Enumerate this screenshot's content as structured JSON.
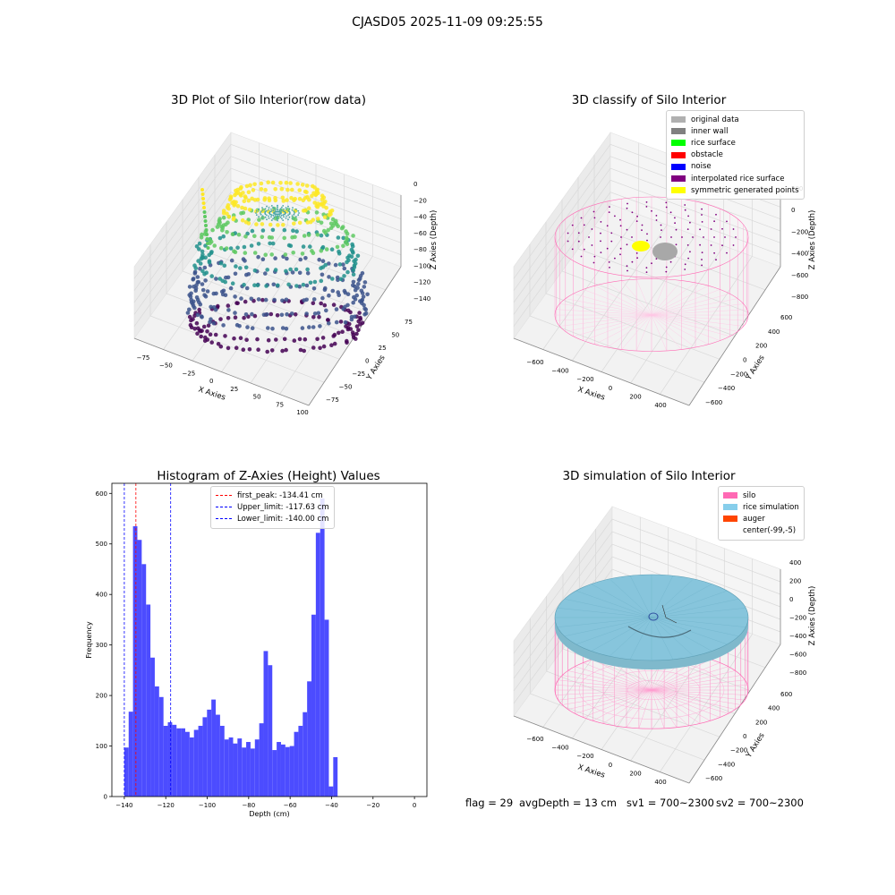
{
  "page": {
    "title": "CJASD05 2025-11-09 09:25:55"
  },
  "chart_data": [
    {
      "type": "scatter3d",
      "title": "3D Plot of Silo Interior(row data)",
      "xlabel": "X Axies",
      "ylabel": "Y Axies",
      "zlabel": "Z Axies (Depth)",
      "x_ticks": [
        "−75",
        "−50",
        "−25",
        "0",
        "25",
        "50",
        "75",
        "100"
      ],
      "y_ticks": [
        "−75",
        "−50",
        "−25",
        "0",
        "25",
        "50",
        "75"
      ],
      "z_ticks": [
        "0",
        "−20",
        "−40",
        "−60",
        "−80",
        "−100",
        "−120",
        "−140"
      ],
      "colormap": [
        "#440154",
        "#3b528b",
        "#21918c",
        "#5ec962",
        "#fde725"
      ]
    },
    {
      "type": "scatter3d",
      "title": "3D classify of Silo Interior",
      "xlabel": "X Axies",
      "ylabel": "Y Axies",
      "zlabel": "Z Axies (Depth)",
      "x_ticks": [
        "−600",
        "−400",
        "−200",
        "0",
        "200",
        "400"
      ],
      "y_ticks": [
        "−600",
        "−400",
        "−200",
        "0",
        "200",
        "400",
        "600"
      ],
      "z_ticks": [
        "200",
        "0",
        "−200",
        "−400",
        "−600",
        "−800"
      ],
      "legend_position": "top-right",
      "legend": [
        {
          "label": "original data",
          "color": "#b0b0b0"
        },
        {
          "label": "inner wall",
          "color": "#808080"
        },
        {
          "label": "rice surface",
          "color": "#00ff00"
        },
        {
          "label": "obstacle",
          "color": "#ff0000"
        },
        {
          "label": "noise",
          "color": "#0000ff"
        },
        {
          "label": "interpolated rice surface",
          "color": "#800080"
        },
        {
          "label": "symmetric generated points",
          "color": "#ffff00"
        }
      ]
    },
    {
      "type": "bar",
      "title": "Histogram of Z-Axies (Height) Values",
      "xlabel": "Depth (cm)",
      "ylabel": "Frequency",
      "xlim": [
        -146,
        6
      ],
      "ylim": [
        0,
        620
      ],
      "x_ticks": [
        -140,
        -120,
        -100,
        -80,
        -60,
        -40,
        -20,
        0
      ],
      "y_ticks": [
        0,
        100,
        200,
        300,
        400,
        500,
        600
      ],
      "bar_color": "#4c4cff",
      "bin_edges_start": -140,
      "bin_width": 2.1,
      "values": [
        97,
        168,
        535,
        508,
        460,
        380,
        275,
        218,
        197,
        140,
        147,
        142,
        135,
        135,
        128,
        117,
        132,
        140,
        157,
        172,
        192,
        162,
        140,
        113,
        117,
        105,
        115,
        97,
        108,
        95,
        113,
        145,
        288,
        260,
        92,
        108,
        103,
        98,
        100,
        128,
        140,
        167,
        228,
        360,
        522,
        590,
        350,
        20,
        78
      ],
      "vlines": [
        {
          "x": -134.41,
          "color": "#ff0000",
          "label": "first_peak: -134.41 cm"
        },
        {
          "x": -117.63,
          "color": "#0000ff",
          "label": "Upper_limit: -117.63 cm"
        },
        {
          "x": -140.0,
          "color": "#0000ff",
          "label": "Lower_limit: -140.00 cm"
        }
      ],
      "legend_position": "top-center"
    },
    {
      "type": "surface3d",
      "title": "3D simulation of Silo Interior",
      "xlabel": "X Axies",
      "ylabel": "Y Axies",
      "zlabel": "Z Axies (Depth)",
      "x_ticks": [
        "−600",
        "−400",
        "−200",
        "0",
        "200",
        "400"
      ],
      "y_ticks": [
        "−600",
        "−400",
        "−200",
        "0",
        "200",
        "400",
        "600"
      ],
      "z_ticks": [
        "400",
        "200",
        "0",
        "−200",
        "−400",
        "−600",
        "−800"
      ],
      "legend_position": "top-right",
      "legend": [
        {
          "label": "silo",
          "color": "#ff69b4"
        },
        {
          "label": "rice simulation",
          "color": "#87ceeb"
        },
        {
          "label": "auger",
          "color": "#ff4500"
        },
        {
          "label": "center(-99,-5)",
          "color": "#ffffff"
        }
      ]
    }
  ],
  "status": {
    "flag": "flag = 29",
    "avg_depth": "avgDepth = 13 cm",
    "sv1": "sv1 = 700~2300",
    "sv2": "sv2 = 700~2300"
  }
}
